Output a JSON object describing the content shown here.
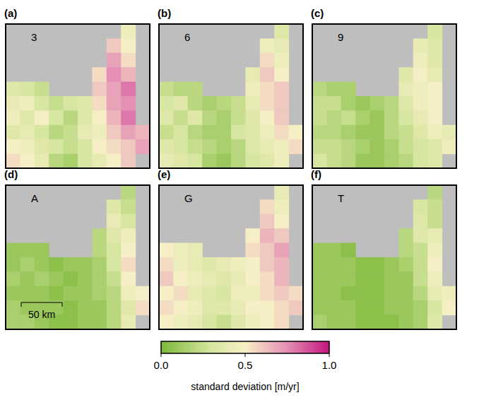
{
  "chart_data": {
    "type": "heatmap_panels",
    "panels": [
      {
        "letter": "(a)",
        "label": "3",
        "cells": [
          [
            null,
            null,
            null,
            null,
            null,
            null,
            null,
            null,
            0.45,
            null
          ],
          [
            null,
            null,
            null,
            null,
            null,
            null,
            null,
            0.6,
            0.5,
            null
          ],
          [
            null,
            null,
            null,
            null,
            null,
            null,
            null,
            0.7,
            0.55,
            null
          ],
          [
            null,
            null,
            null,
            null,
            null,
            null,
            0.55,
            0.75,
            0.65,
            null
          ],
          [
            0.35,
            0.3,
            0.25,
            null,
            null,
            null,
            0.6,
            0.7,
            0.8,
            null
          ],
          [
            0.4,
            0.45,
            0.3,
            0.25,
            0.3,
            0.35,
            0.55,
            0.7,
            0.75,
            null
          ],
          [
            0.45,
            0.35,
            0.5,
            0.3,
            0.2,
            0.35,
            0.5,
            0.65,
            0.8,
            null
          ],
          [
            0.35,
            0.4,
            0.3,
            0.2,
            0.25,
            0.4,
            0.45,
            0.6,
            0.7,
            0.65
          ],
          [
            0.5,
            0.45,
            0.35,
            0.3,
            0.25,
            0.3,
            0.5,
            0.55,
            0.6,
            0.7
          ],
          [
            0.55,
            0.5,
            0.4,
            0.2,
            0.15,
            0.3,
            0.4,
            0.5,
            0.6,
            null
          ]
        ]
      },
      {
        "letter": "(b)",
        "label": "6",
        "cells": [
          [
            null,
            null,
            null,
            null,
            null,
            null,
            null,
            null,
            0.35,
            null
          ],
          [
            null,
            null,
            null,
            null,
            null,
            null,
            null,
            0.45,
            0.4,
            null
          ],
          [
            null,
            null,
            null,
            null,
            null,
            null,
            null,
            0.55,
            0.45,
            null
          ],
          [
            null,
            null,
            null,
            null,
            null,
            null,
            0.4,
            0.6,
            0.5,
            null
          ],
          [
            0.25,
            0.2,
            0.2,
            null,
            null,
            null,
            0.45,
            0.55,
            0.6,
            null
          ],
          [
            0.3,
            0.35,
            0.2,
            0.15,
            0.2,
            0.25,
            0.4,
            0.55,
            0.6,
            null
          ],
          [
            0.35,
            0.25,
            0.35,
            0.2,
            0.15,
            0.25,
            0.35,
            0.5,
            0.6,
            null
          ],
          [
            0.25,
            0.3,
            0.2,
            0.15,
            0.15,
            0.3,
            0.35,
            0.45,
            0.55,
            0.5
          ],
          [
            0.35,
            0.3,
            0.25,
            0.2,
            0.15,
            0.2,
            0.35,
            0.4,
            0.45,
            0.55
          ],
          [
            0.4,
            0.35,
            0.3,
            0.15,
            0.1,
            0.2,
            0.3,
            0.35,
            0.45,
            null
          ]
        ]
      },
      {
        "letter": "(c)",
        "label": "9",
        "cells": [
          [
            null,
            null,
            null,
            null,
            null,
            null,
            null,
            null,
            0.3,
            null
          ],
          [
            null,
            null,
            null,
            null,
            null,
            null,
            null,
            0.4,
            0.35,
            null
          ],
          [
            null,
            null,
            null,
            null,
            null,
            null,
            null,
            0.45,
            0.35,
            null
          ],
          [
            null,
            null,
            null,
            null,
            null,
            null,
            0.35,
            0.5,
            0.4,
            null
          ],
          [
            0.2,
            0.15,
            0.15,
            null,
            null,
            null,
            0.4,
            0.45,
            0.5,
            null
          ],
          [
            0.25,
            0.25,
            0.15,
            0.1,
            0.15,
            0.2,
            0.35,
            0.45,
            0.5,
            null
          ],
          [
            0.25,
            0.2,
            0.25,
            0.15,
            0.1,
            0.2,
            0.3,
            0.4,
            0.5,
            null
          ],
          [
            0.2,
            0.2,
            0.15,
            0.1,
            0.1,
            0.2,
            0.25,
            0.35,
            0.45,
            0.4
          ],
          [
            0.25,
            0.25,
            0.2,
            0.15,
            0.1,
            0.15,
            0.25,
            0.3,
            0.35,
            0.45
          ],
          [
            0.3,
            0.25,
            0.2,
            0.1,
            0.1,
            0.15,
            0.2,
            0.3,
            0.35,
            null
          ]
        ]
      },
      {
        "letter": "(d)",
        "label": "A",
        "cells": [
          [
            null,
            null,
            null,
            null,
            null,
            null,
            null,
            null,
            0.2,
            null
          ],
          [
            null,
            null,
            null,
            null,
            null,
            null,
            null,
            0.35,
            0.25,
            null
          ],
          [
            null,
            null,
            null,
            null,
            null,
            null,
            null,
            0.4,
            0.3,
            null
          ],
          [
            null,
            null,
            null,
            null,
            null,
            null,
            0.2,
            0.35,
            0.45,
            null
          ],
          [
            0.1,
            0.1,
            0.1,
            null,
            null,
            null,
            0.2,
            0.3,
            0.5,
            null
          ],
          [
            0.1,
            0.15,
            0.1,
            0.05,
            0.1,
            0.1,
            0.15,
            0.3,
            0.55,
            null
          ],
          [
            0.15,
            0.1,
            0.15,
            0.1,
            0.05,
            0.1,
            0.15,
            0.25,
            0.5,
            null
          ],
          [
            0.1,
            0.1,
            0.1,
            0.05,
            0.1,
            0.1,
            0.15,
            0.2,
            0.45,
            0.5
          ],
          [
            0.15,
            0.1,
            0.1,
            0.1,
            0.05,
            0.1,
            0.1,
            0.2,
            0.35,
            0.55
          ],
          [
            0.15,
            0.15,
            0.1,
            0.05,
            0.05,
            0.1,
            0.1,
            0.2,
            0.4,
            null
          ]
        ]
      },
      {
        "letter": "(e)",
        "label": "G",
        "cells": [
          [
            null,
            null,
            null,
            null,
            null,
            null,
            null,
            null,
            0.4,
            null
          ],
          [
            null,
            null,
            null,
            null,
            null,
            null,
            null,
            0.55,
            0.45,
            null
          ],
          [
            null,
            null,
            null,
            null,
            null,
            null,
            null,
            0.6,
            0.5,
            null
          ],
          [
            null,
            null,
            null,
            null,
            null,
            null,
            0.5,
            0.65,
            0.6,
            null
          ],
          [
            0.5,
            0.45,
            0.4,
            null,
            null,
            null,
            0.55,
            0.6,
            0.7,
            null
          ],
          [
            0.55,
            0.45,
            0.4,
            0.35,
            0.4,
            0.45,
            0.5,
            0.6,
            0.65,
            null
          ],
          [
            0.6,
            0.5,
            0.45,
            0.4,
            0.35,
            0.4,
            0.5,
            0.55,
            0.65,
            null
          ],
          [
            0.5,
            0.55,
            0.4,
            0.35,
            0.3,
            0.45,
            0.45,
            0.55,
            0.6,
            0.55
          ],
          [
            0.55,
            0.5,
            0.45,
            0.35,
            0.35,
            0.4,
            0.5,
            0.5,
            0.55,
            0.6
          ],
          [
            0.5,
            0.45,
            0.4,
            0.3,
            0.25,
            0.35,
            0.45,
            0.5,
            0.55,
            null
          ]
        ]
      },
      {
        "letter": "(f)",
        "label": "T",
        "cells": [
          [
            null,
            null,
            null,
            null,
            null,
            null,
            null,
            null,
            0.2,
            null
          ],
          [
            null,
            null,
            null,
            null,
            null,
            null,
            null,
            0.3,
            0.25,
            null
          ],
          [
            null,
            null,
            null,
            null,
            null,
            null,
            null,
            0.35,
            0.25,
            null
          ],
          [
            null,
            null,
            null,
            null,
            null,
            null,
            0.2,
            0.35,
            0.4,
            null
          ],
          [
            0.1,
            0.1,
            0.05,
            null,
            null,
            null,
            0.2,
            0.25,
            0.45,
            null
          ],
          [
            0.1,
            0.1,
            0.1,
            0.05,
            0.05,
            0.1,
            0.15,
            0.25,
            0.5,
            null
          ],
          [
            0.1,
            0.1,
            0.1,
            0.05,
            0.05,
            0.1,
            0.1,
            0.25,
            0.45,
            null
          ],
          [
            0.1,
            0.1,
            0.05,
            0.05,
            0.05,
            0.1,
            0.1,
            0.2,
            0.4,
            0.45
          ],
          [
            0.1,
            0.1,
            0.1,
            0.05,
            0.05,
            0.1,
            0.1,
            0.15,
            0.3,
            0.5
          ],
          [
            0.15,
            0.1,
            0.1,
            0.05,
            0.05,
            0.05,
            0.1,
            0.15,
            0.35,
            null
          ]
        ]
      }
    ],
    "scale_bar": {
      "panel": "(d)",
      "label": "50 km"
    },
    "colorbar": {
      "range": [
        0,
        1
      ],
      "ticks": [
        {
          "value": 0,
          "label": "0.0"
        },
        {
          "value": 0.5,
          "label": "0.5"
        },
        {
          "value": 1,
          "label": "1.0"
        }
      ],
      "label": "standard deviation [m/yr]"
    }
  }
}
